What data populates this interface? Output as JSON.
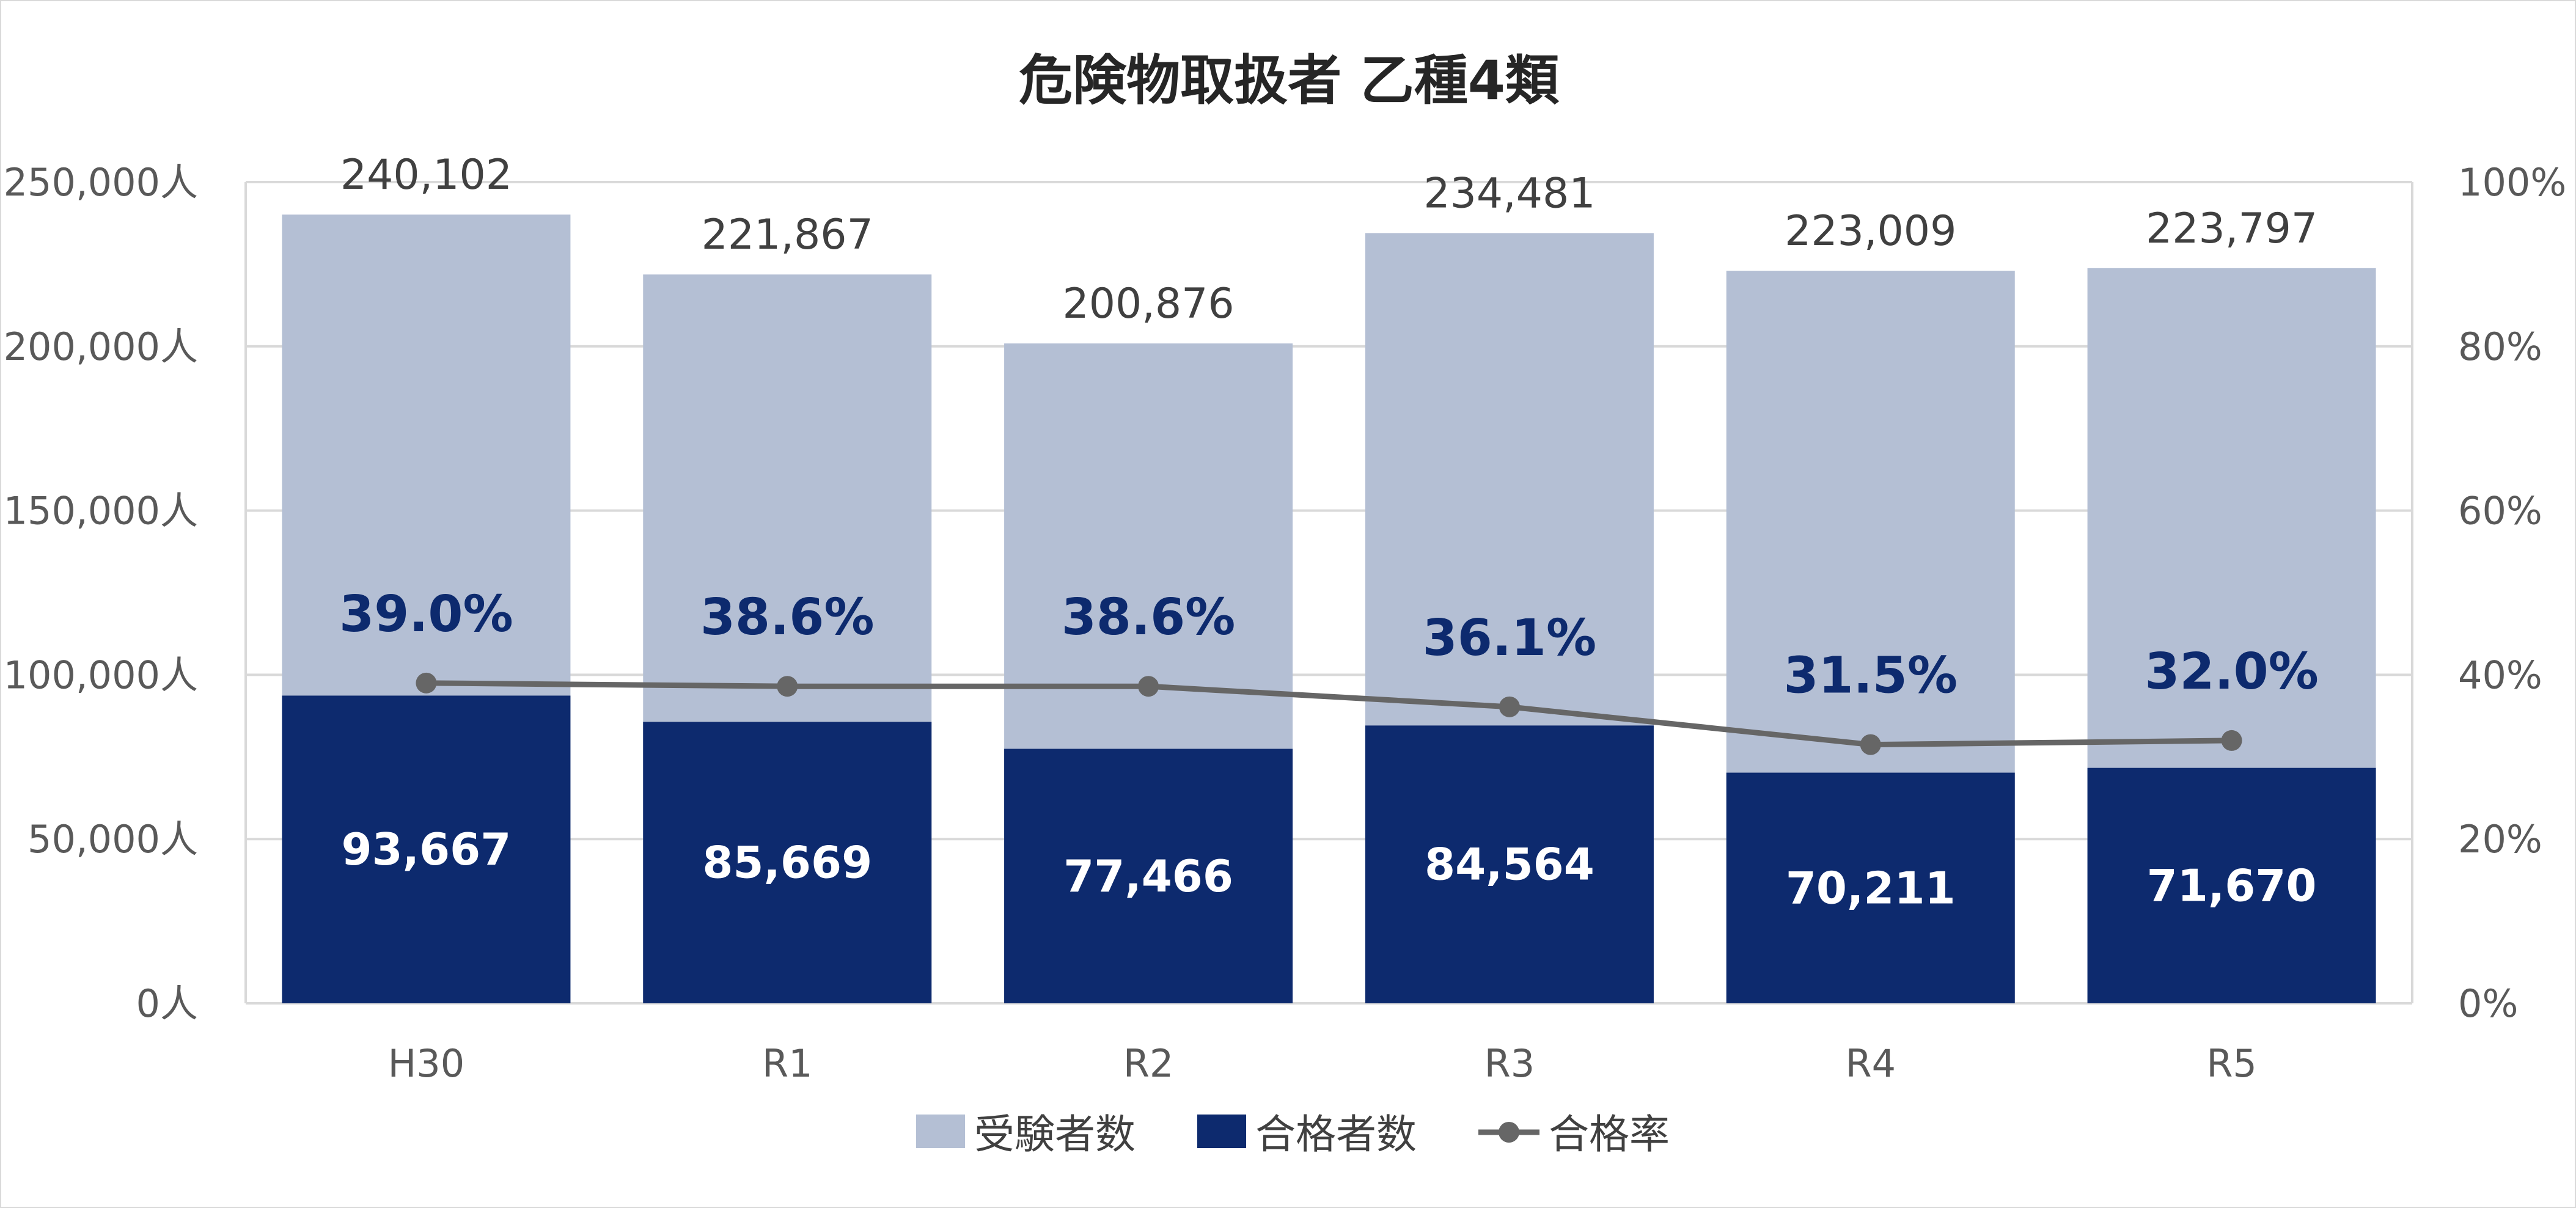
{
  "chart_data": {
    "type": "bar",
    "subtype": "stacked-bar-with-line-secondary-axis",
    "title": "危険物取扱者 乙種4類",
    "categories": [
      "H30",
      "R1",
      "R2",
      "R3",
      "R4",
      "R5"
    ],
    "series": [
      {
        "name": "受験者数",
        "kind": "bar",
        "axis": "left",
        "color": "#b4bfd4",
        "values": [
          240102,
          221867,
          200876,
          234481,
          223009,
          223797
        ],
        "labels": [
          "240,102",
          "221,867",
          "200,876",
          "234,481",
          "223,009",
          "223,797"
        ]
      },
      {
        "name": "合格者数",
        "kind": "bar",
        "axis": "left",
        "color": "#0d2a6e",
        "values": [
          93667,
          85669,
          77466,
          84564,
          70211,
          71670
        ],
        "labels": [
          "93,667",
          "85,669",
          "77,466",
          "84,564",
          "70,211",
          "71,670"
        ]
      },
      {
        "name": "合格率",
        "kind": "line",
        "axis": "right",
        "color": "#666666",
        "values": [
          39.0,
          38.6,
          38.6,
          36.1,
          31.5,
          32.0
        ],
        "labels": [
          "39.0%",
          "38.6%",
          "38.6%",
          "36.1%",
          "31.5%",
          "32.0%"
        ]
      }
    ],
    "y_left": {
      "range": [
        0,
        250000
      ],
      "tick_values": [
        0,
        50000,
        100000,
        150000,
        200000,
        250000
      ],
      "tick_labels": [
        "0人",
        "50,000人",
        "100,000人",
        "150,000人",
        "200,000人",
        "250,000人"
      ]
    },
    "y_right": {
      "range": [
        0,
        100
      ],
      "tick_values": [
        0,
        20,
        40,
        60,
        80,
        100
      ],
      "tick_labels": [
        "0%",
        "20%",
        "40%",
        "60%",
        "80%",
        "100%"
      ]
    },
    "grid": true,
    "legend": "bottom-center",
    "colors": {
      "gridline": "#d9d9d9",
      "axis_text": "#595959",
      "rate_label": "#0d2a6e"
    }
  }
}
